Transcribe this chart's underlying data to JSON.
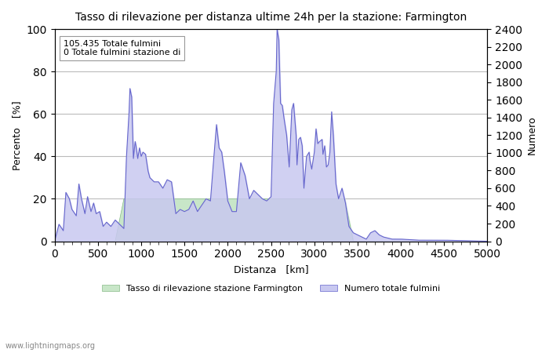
{
  "title": "Tasso di rilevazione per distanza ultime 24h per la stazione: Farmington",
  "xlabel": "Distanza   [km]",
  "ylabel_left": "Percento   [%]",
  "ylabel_right": "Numero",
  "annotation_line1": "105.435 Totale fulmini",
  "annotation_line2": "0 Totale fulmini stazione di",
  "xlim": [
    0,
    5000
  ],
  "ylim_left": [
    0,
    100
  ],
  "ylim_right": [
    0,
    2400
  ],
  "xticks": [
    0,
    500,
    1000,
    1500,
    2000,
    2500,
    3000,
    3500,
    4000,
    4500,
    5000
  ],
  "yticks_left": [
    0,
    20,
    40,
    60,
    80,
    100
  ],
  "yticks_right": [
    0,
    200,
    400,
    600,
    800,
    1000,
    1200,
    1400,
    1600,
    1800,
    2000,
    2200,
    2400
  ],
  "legend_label_green": "Tasso di rilevazione stazione Farmington",
  "legend_label_blue": "Numero totale fulmini",
  "fill_green_color": "#c8e6c8",
  "fill_blue_color": "#c8c8f0",
  "line_blue_color": "#6666cc",
  "line_green_color": "#88bb88",
  "watermark": "www.lightningmaps.org",
  "background_color": "#ffffff",
  "grid_color": "#bbbbbb"
}
